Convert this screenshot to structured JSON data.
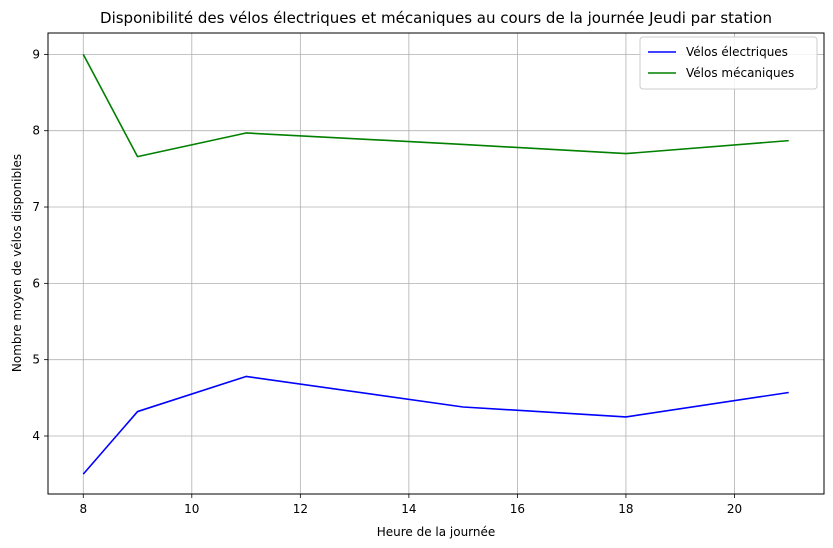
{
  "chart_data": {
    "type": "line",
    "title": "Disponibilité des vélos électriques et mécaniques au cours de la journée Jeudi par station",
    "xlabel": "Heure de la journée",
    "ylabel": "Nombre moyen de vélos disponibles",
    "xlim": [
      7.35,
      21.65
    ],
    "ylim": [
      3.24,
      9.28
    ],
    "xticks": [
      8,
      10,
      12,
      14,
      16,
      18,
      20
    ],
    "yticks": [
      4,
      5,
      6,
      7,
      8,
      9
    ],
    "grid": true,
    "legend_position": "top-right",
    "x": [
      8,
      9,
      11,
      15,
      18,
      21
    ],
    "series": [
      {
        "name": "Vélos électriques",
        "color": "#0000ff",
        "values": [
          3.5,
          4.32,
          4.78,
          4.38,
          4.25,
          4.57
        ]
      },
      {
        "name": "Vélos mécaniques",
        "color": "#008000",
        "values": [
          9.0,
          7.66,
          7.97,
          7.82,
          7.7,
          7.87
        ]
      }
    ]
  }
}
